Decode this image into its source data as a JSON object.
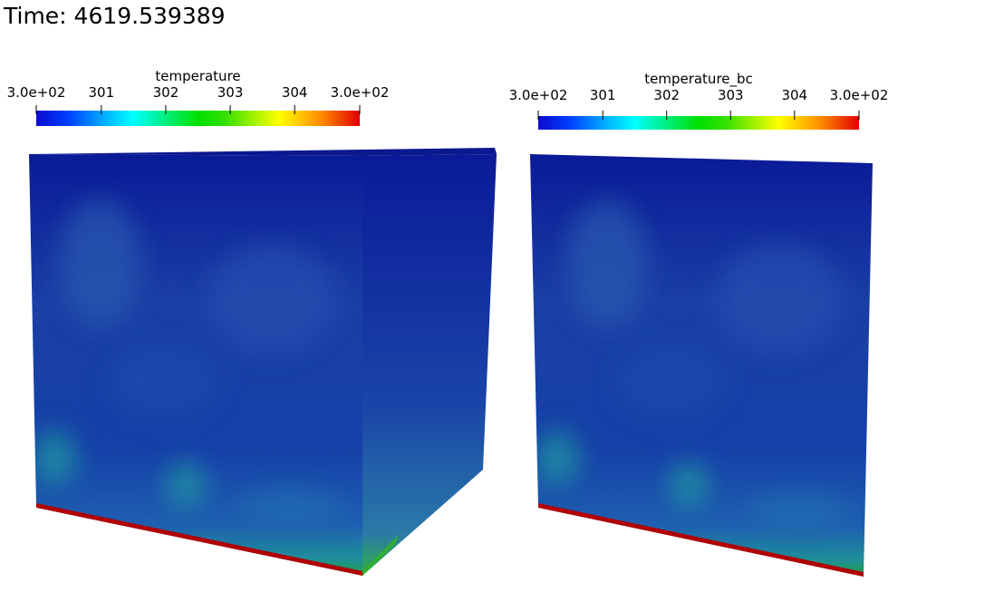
{
  "time_label": "Time: 4619.539389",
  "colorbars": [
    {
      "title": "temperature",
      "ticks": [
        "3.0e+02",
        "301",
        "302",
        "303",
        "304",
        "3.0e+02"
      ]
    },
    {
      "title": "temperature_bc",
      "ticks": [
        "3.0e+02",
        "301",
        "302",
        "303",
        "304",
        "3.0e+02"
      ]
    }
  ]
}
